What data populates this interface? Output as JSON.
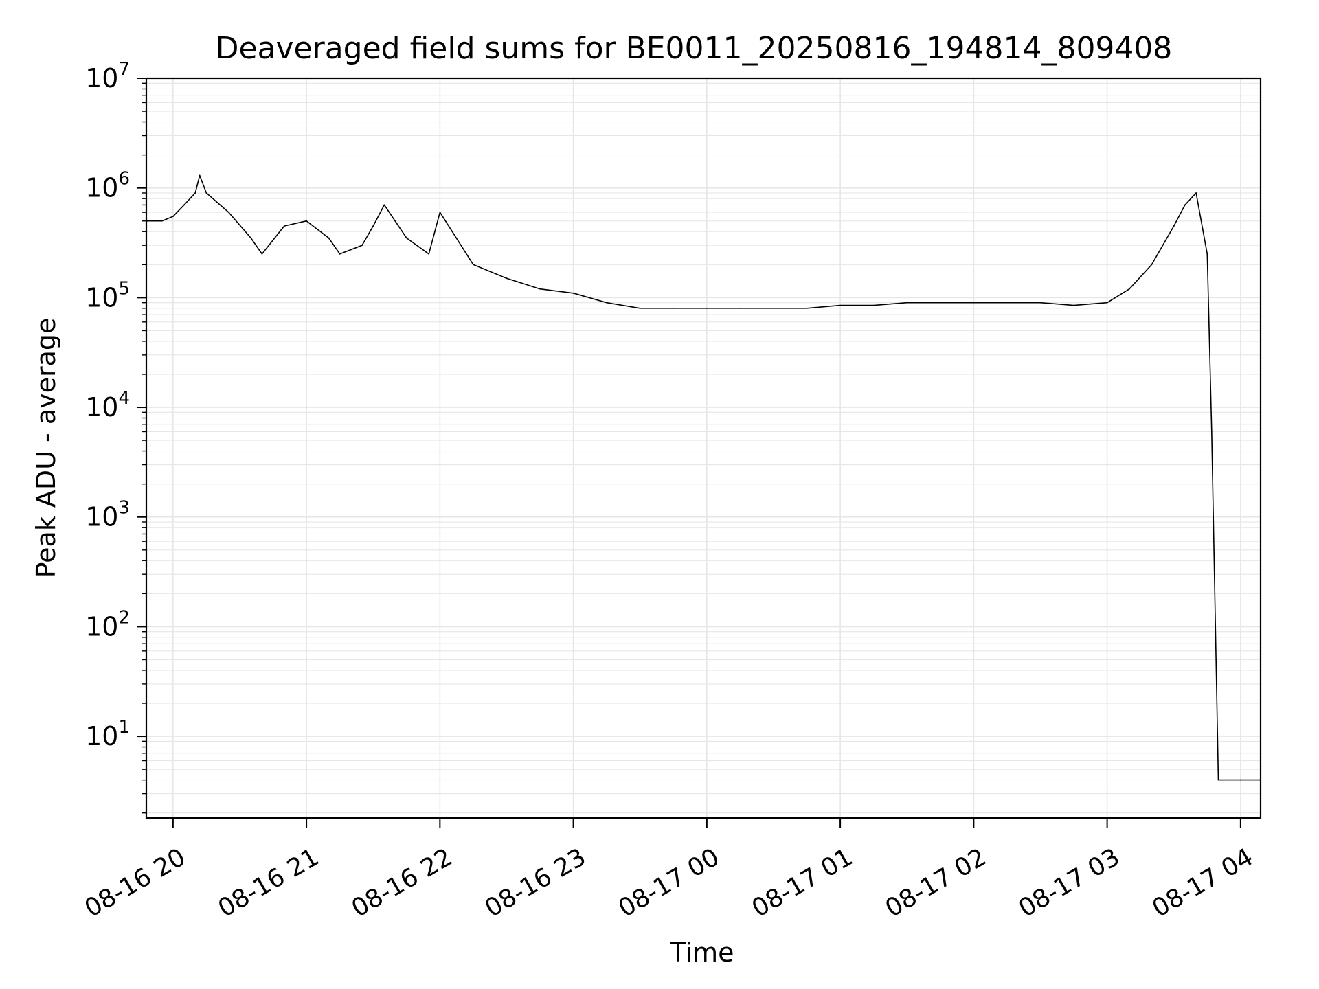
{
  "chart_data": {
    "type": "line",
    "title": "Deaveraged field sums for BE0011_20250816_194814_809408",
    "xlabel": "Time",
    "ylabel": "Peak ADU - average",
    "y_scale": "log",
    "ylim": [
      1.8,
      10000000
    ],
    "xlim": [
      "2025-08-16 19:48",
      "2025-08-17 04:09"
    ],
    "x_ticks": [
      {
        "label": "08-16 20",
        "time": "2025-08-16 20:00"
      },
      {
        "label": "08-16 21",
        "time": "2025-08-16 21:00"
      },
      {
        "label": "08-16 22",
        "time": "2025-08-16 22:00"
      },
      {
        "label": "08-16 23",
        "time": "2025-08-16 23:00"
      },
      {
        "label": "08-17 00",
        "time": "2025-08-17 00:00"
      },
      {
        "label": "08-17 01",
        "time": "2025-08-17 01:00"
      },
      {
        "label": "08-17 02",
        "time": "2025-08-17 02:00"
      },
      {
        "label": "08-17 03",
        "time": "2025-08-17 03:00"
      },
      {
        "label": "08-17 04",
        "time": "2025-08-17 04:00"
      }
    ],
    "y_ticks": [
      {
        "base": "10",
        "exp": "1",
        "value": 10
      },
      {
        "base": "10",
        "exp": "2",
        "value": 100
      },
      {
        "base": "10",
        "exp": "3",
        "value": 1000
      },
      {
        "base": "10",
        "exp": "4",
        "value": 10000
      },
      {
        "base": "10",
        "exp": "5",
        "value": 100000
      },
      {
        "base": "10",
        "exp": "6",
        "value": 1000000
      },
      {
        "base": "10",
        "exp": "7",
        "value": 10000000
      }
    ],
    "grid": true,
    "line_color": "#000000",
    "grid_color": "#e6e6e6",
    "series": [
      {
        "x": [
          "2025-08-16 19:48",
          "2025-08-16 19:55",
          "2025-08-16 20:00",
          "2025-08-16 20:05",
          "2025-08-16 20:10",
          "2025-08-16 20:12",
          "2025-08-16 20:15",
          "2025-08-16 20:25",
          "2025-08-16 20:35",
          "2025-08-16 20:40",
          "2025-08-16 20:50",
          "2025-08-16 21:00",
          "2025-08-16 21:10",
          "2025-08-16 21:15",
          "2025-08-16 21:25",
          "2025-08-16 21:30",
          "2025-08-16 21:35",
          "2025-08-16 21:45",
          "2025-08-16 21:55",
          "2025-08-16 22:00",
          "2025-08-16 22:15",
          "2025-08-16 22:30",
          "2025-08-16 22:45",
          "2025-08-16 23:00",
          "2025-08-16 23:15",
          "2025-08-16 23:30",
          "2025-08-16 23:45",
          "2025-08-17 00:00",
          "2025-08-17 00:15",
          "2025-08-17 00:30",
          "2025-08-17 00:45",
          "2025-08-17 01:00",
          "2025-08-17 01:15",
          "2025-08-17 01:30",
          "2025-08-17 01:45",
          "2025-08-17 02:00",
          "2025-08-17 02:15",
          "2025-08-17 02:30",
          "2025-08-17 02:45",
          "2025-08-17 03:00",
          "2025-08-17 03:10",
          "2025-08-17 03:20",
          "2025-08-17 03:30",
          "2025-08-17 03:35",
          "2025-08-17 03:40",
          "2025-08-17 03:45",
          "2025-08-17 03:47",
          "2025-08-17 03:50",
          "2025-08-17 04:00",
          "2025-08-17 04:09"
        ],
        "y": [
          500000,
          500000,
          550000,
          700000,
          900000,
          1300000,
          900000,
          600000,
          350000,
          250000,
          450000,
          500000,
          350000,
          250000,
          300000,
          450000,
          700000,
          350000,
          250000,
          600000,
          200000,
          150000,
          120000,
          110000,
          90000,
          80000,
          80000,
          80000,
          80000,
          80000,
          80000,
          85000,
          85000,
          90000,
          90000,
          90000,
          90000,
          90000,
          85000,
          90000,
          120000,
          200000,
          450000,
          700000,
          900000,
          250000,
          6000,
          4,
          4,
          4
        ]
      }
    ]
  }
}
